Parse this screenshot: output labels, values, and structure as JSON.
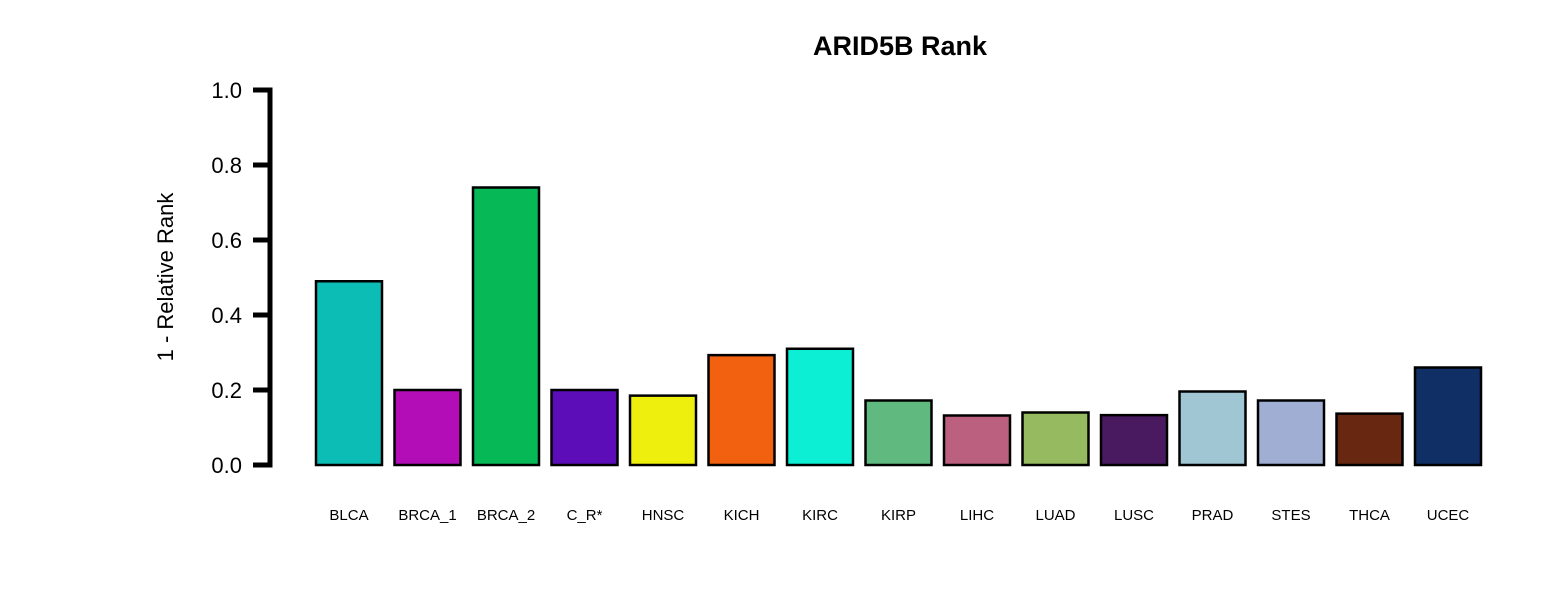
{
  "chart_data": {
    "type": "bar",
    "title": "ARID5B Rank",
    "xlabel": "",
    "ylabel": "1 - Relative Rank",
    "ylim": [
      0,
      1.0
    ],
    "yticks": [
      "0.0",
      "0.2",
      "0.4",
      "0.6",
      "0.8",
      "1.0"
    ],
    "grid": false,
    "legend": "none",
    "categories": [
      "BLCA",
      "BRCA_1",
      "BRCA_2",
      "C_R*",
      "HNSC",
      "KICH",
      "KIRC",
      "KIRP",
      "LIHC",
      "LUAD",
      "LUSC",
      "PRAD",
      "STES",
      "THCA",
      "UCEC"
    ],
    "values": [
      0.49,
      0.2,
      0.74,
      0.2,
      0.185,
      0.293,
      0.31,
      0.172,
      0.132,
      0.14,
      0.133,
      0.196,
      0.172,
      0.137,
      0.26
    ],
    "colors": [
      "#0CBDB5",
      "#B30DB8",
      "#07B857",
      "#5C0DB8",
      "#EFEF0D",
      "#F26110",
      "#0DEFD4",
      "#60BA7F",
      "#BC607F",
      "#95BA5F",
      "#4A1A60",
      "#A0C6D3",
      "#A0AED3",
      "#682710",
      "#0F2F65"
    ]
  }
}
